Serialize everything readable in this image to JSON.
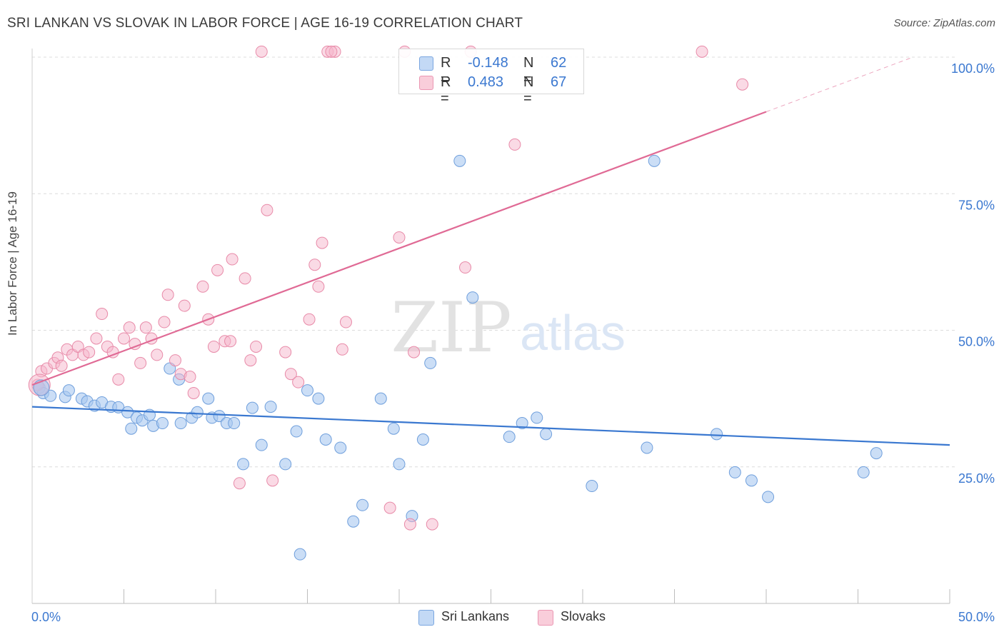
{
  "header": {
    "title": "SRI LANKAN VS SLOVAK IN LABOR FORCE | AGE 16-19 CORRELATION CHART",
    "source": "Source: ZipAtlas.com"
  },
  "watermark": {
    "zip": "ZIP",
    "atlas": "atlas"
  },
  "stats": [
    {
      "r_label": "R =",
      "r_value": "-0.148",
      "n_label": "N =",
      "n_value": "62",
      "color": "#a9c8f0"
    },
    {
      "r_label": "R =",
      "r_value": "0.483",
      "n_label": "N =",
      "n_value": "67",
      "color": "#f6b6cb"
    }
  ],
  "legend": [
    {
      "label": "Sri Lankans",
      "color": "#a9c8f0"
    },
    {
      "label": "Slovaks",
      "color": "#f6b6cb"
    }
  ],
  "chart_data": {
    "type": "scatter",
    "ylabel": "In Labor Force | Age 16-19",
    "xlim": [
      0,
      50
    ],
    "ylim": [
      0,
      100
    ],
    "x_tick_labels": [
      {
        "value": 0,
        "label": "0.0%"
      },
      {
        "value": 50,
        "label": "50.0%"
      }
    ],
    "y_tick_labels": [
      {
        "value": 25,
        "label": "25.0%"
      },
      {
        "value": 50,
        "label": "50.0%"
      },
      {
        "value": 75,
        "label": "75.0%"
      },
      {
        "value": 100,
        "label": "100.0%"
      }
    ],
    "grid": true,
    "series": [
      {
        "name": "Sri Lankans",
        "color": "#a9c8f0",
        "stroke": "#6f9fdc",
        "trend": {
          "x": [
            0,
            50
          ],
          "y": [
            36.0,
            29.0
          ],
          "color": "#3a78d0"
        },
        "points": [
          [
            0.4,
            39.5
          ],
          [
            0.6,
            38.5
          ],
          [
            1.0,
            38
          ],
          [
            1.8,
            37.8
          ],
          [
            2.0,
            39
          ],
          [
            2.7,
            37.5
          ],
          [
            3.0,
            37
          ],
          [
            3.4,
            36.2
          ],
          [
            3.8,
            36.8
          ],
          [
            4.3,
            36
          ],
          [
            4.7,
            35.9
          ],
          [
            5.2,
            35
          ],
          [
            5.4,
            32
          ],
          [
            5.7,
            34
          ],
          [
            6.0,
            33.5
          ],
          [
            6.4,
            34.5
          ],
          [
            6.6,
            32.5
          ],
          [
            7.1,
            33
          ],
          [
            7.5,
            43
          ],
          [
            8.0,
            41
          ],
          [
            8.1,
            33
          ],
          [
            8.7,
            34
          ],
          [
            9.0,
            35
          ],
          [
            9.6,
            37.5
          ],
          [
            9.8,
            34
          ],
          [
            10.2,
            34.3
          ],
          [
            10.6,
            33
          ],
          [
            11.0,
            33
          ],
          [
            11.5,
            25.5
          ],
          [
            12.0,
            35.8
          ],
          [
            12.5,
            29
          ],
          [
            13.0,
            36
          ],
          [
            13.8,
            25.5
          ],
          [
            14.4,
            31.5
          ],
          [
            14.6,
            9
          ],
          [
            15.0,
            39
          ],
          [
            15.6,
            37.5
          ],
          [
            16.0,
            30
          ],
          [
            16.8,
            28.5
          ],
          [
            17.5,
            15
          ],
          [
            18.0,
            18
          ],
          [
            19.0,
            37.5
          ],
          [
            19.7,
            32
          ],
          [
            20.0,
            25.5
          ],
          [
            20.7,
            16
          ],
          [
            21.3,
            30
          ],
          [
            21.7,
            44
          ],
          [
            23.3,
            81
          ],
          [
            24.0,
            56
          ],
          [
            26.0,
            30.5
          ],
          [
            26.7,
            33
          ],
          [
            27.5,
            34
          ],
          [
            28.0,
            31
          ],
          [
            30.5,
            21.5
          ],
          [
            33.5,
            28.5
          ],
          [
            33.9,
            81
          ],
          [
            37.3,
            31
          ],
          [
            38.3,
            24
          ],
          [
            39.2,
            22.5
          ],
          [
            40.1,
            19.5
          ],
          [
            45.3,
            24
          ],
          [
            46.0,
            27.5
          ]
        ]
      },
      {
        "name": "Slovaks",
        "color": "#f6b6cb",
        "stroke": "#e88aa8",
        "trend": {
          "x": [
            0,
            40
          ],
          "y": [
            40.0,
            90.0
          ],
          "color": "#e06a95"
        },
        "points": [
          [
            0.3,
            40
          ],
          [
            0.5,
            42.5
          ],
          [
            0.8,
            43
          ],
          [
            1.2,
            44
          ],
          [
            1.4,
            45
          ],
          [
            1.6,
            43.5
          ],
          [
            1.9,
            46.5
          ],
          [
            2.2,
            45.5
          ],
          [
            2.5,
            47
          ],
          [
            2.8,
            45.5
          ],
          [
            3.1,
            46
          ],
          [
            3.5,
            48.5
          ],
          [
            3.8,
            53
          ],
          [
            4.1,
            47
          ],
          [
            4.4,
            46
          ],
          [
            4.7,
            41
          ],
          [
            5.0,
            48.5
          ],
          [
            5.3,
            50.5
          ],
          [
            5.6,
            47.5
          ],
          [
            5.9,
            44
          ],
          [
            6.2,
            50.5
          ],
          [
            6.5,
            48.5
          ],
          [
            6.8,
            45.5
          ],
          [
            7.2,
            51.5
          ],
          [
            7.4,
            56.5
          ],
          [
            7.8,
            44.5
          ],
          [
            8.1,
            42
          ],
          [
            8.3,
            54.5
          ],
          [
            8.6,
            41.5
          ],
          [
            8.8,
            38.5
          ],
          [
            9.3,
            58
          ],
          [
            9.6,
            52
          ],
          [
            9.9,
            47
          ],
          [
            10.1,
            61
          ],
          [
            10.5,
            48
          ],
          [
            10.8,
            48
          ],
          [
            10.9,
            63
          ],
          [
            11.3,
            22
          ],
          [
            11.6,
            59.5
          ],
          [
            11.9,
            44.5
          ],
          [
            12.2,
            47
          ],
          [
            12.5,
            101
          ],
          [
            12.8,
            72
          ],
          [
            13.1,
            22.5
          ],
          [
            13.8,
            46
          ],
          [
            14.1,
            42
          ],
          [
            14.5,
            40.5
          ],
          [
            15.1,
            52
          ],
          [
            15.4,
            62
          ],
          [
            15.6,
            58
          ],
          [
            15.8,
            66
          ],
          [
            16.1,
            101
          ],
          [
            16.5,
            101
          ],
          [
            16.3,
            101
          ],
          [
            16.9,
            46.5
          ],
          [
            17.1,
            51.5
          ],
          [
            19.5,
            17.5
          ],
          [
            20.0,
            67
          ],
          [
            20.3,
            101
          ],
          [
            20.6,
            14.5
          ],
          [
            20.8,
            46
          ],
          [
            21.8,
            14.5
          ],
          [
            23.6,
            61.5
          ],
          [
            23.9,
            101
          ],
          [
            26.3,
            84
          ],
          [
            36.5,
            101
          ],
          [
            38.7,
            95
          ]
        ]
      }
    ]
  }
}
